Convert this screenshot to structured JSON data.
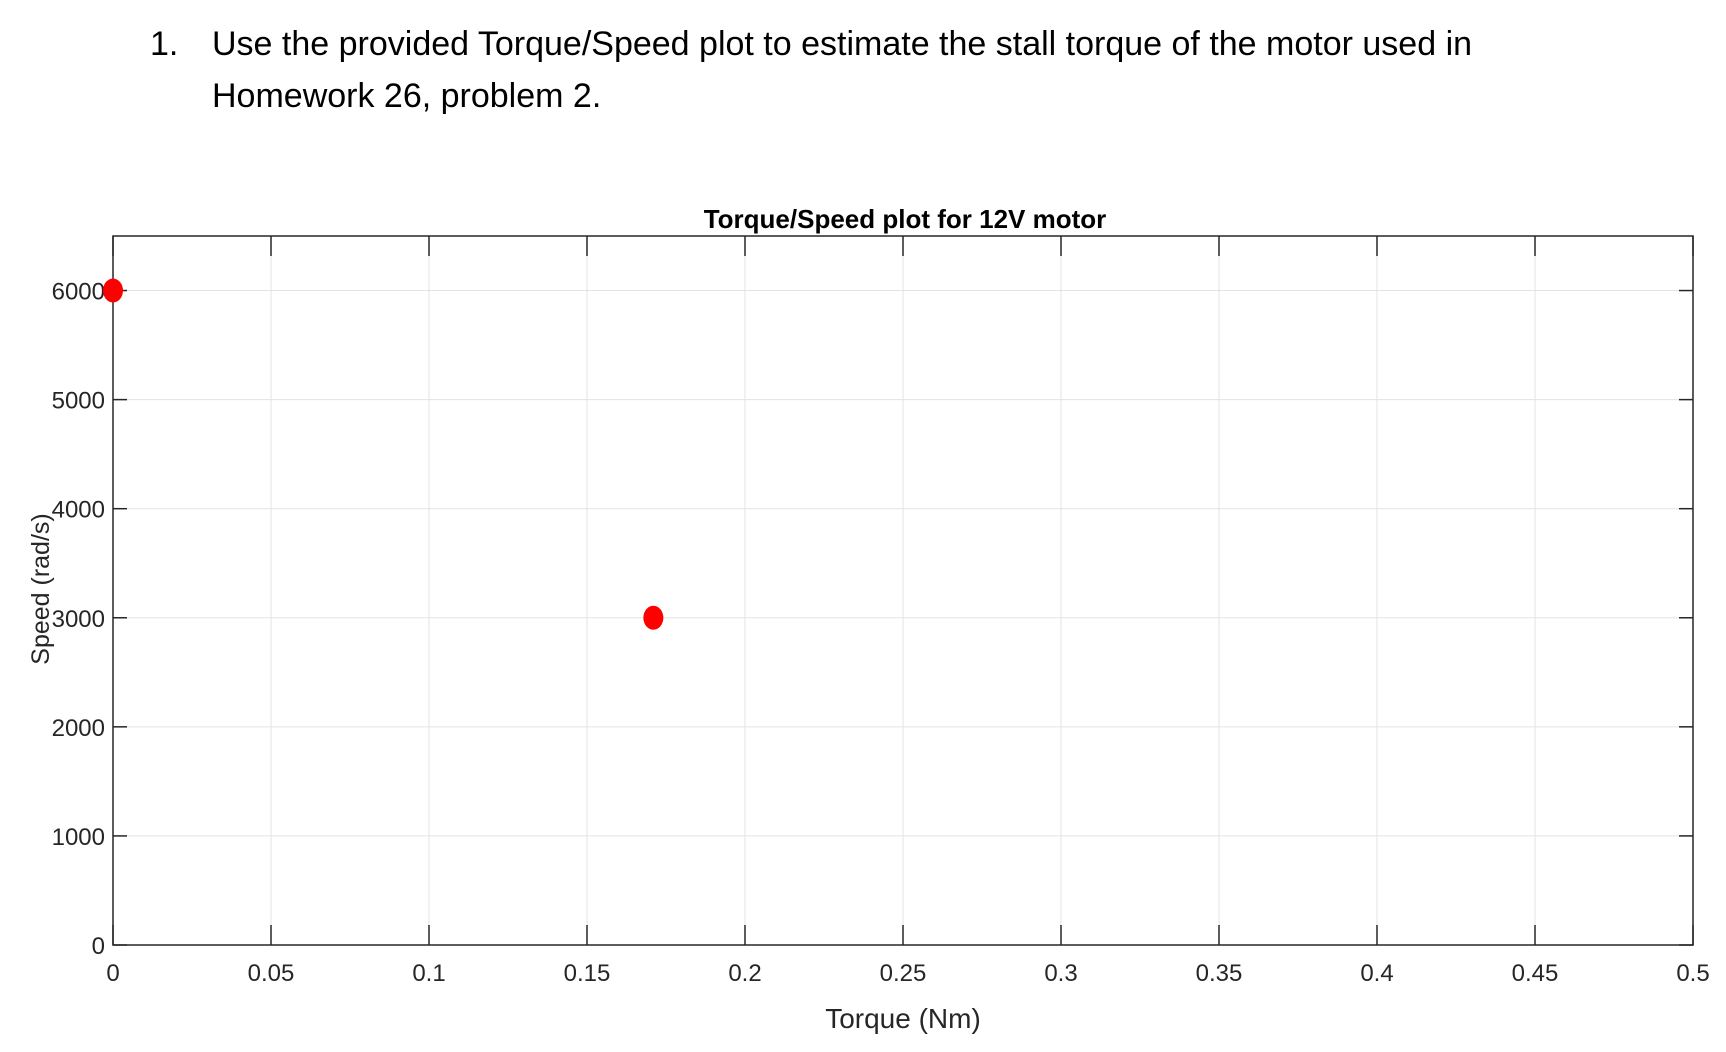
{
  "question": {
    "number": "1.",
    "text": "Use the provided Torque/Speed plot to estimate the stall torque of the motor used in Homework 26, problem 2."
  },
  "chart_data": {
    "type": "scatter",
    "title": "Torque/Speed plot for 12V motor",
    "xlabel": "Torque (Nm)",
    "ylabel": "Speed (rad/s)",
    "xlim": [
      0,
      0.5
    ],
    "ylim": [
      0,
      6500
    ],
    "xticks": [
      0,
      0.05,
      0.1,
      0.15,
      0.2,
      0.25,
      0.3,
      0.35,
      0.4,
      0.45,
      0.5
    ],
    "xtick_labels": [
      "0",
      "0.05",
      "0.1",
      "0.15",
      "0.2",
      "0.25",
      "0.3",
      "0.35",
      "0.4",
      "0.45",
      "0.5"
    ],
    "yticks": [
      0,
      1000,
      2000,
      3000,
      4000,
      5000,
      6000
    ],
    "ytick_labels": [
      "0",
      "1000",
      "2000",
      "3000",
      "4000",
      "5000",
      "6000"
    ],
    "grid": true,
    "series": [
      {
        "color": "#ff0000",
        "x": [
          0,
          0.171
        ],
        "y": [
          6000,
          3000
        ]
      }
    ]
  }
}
